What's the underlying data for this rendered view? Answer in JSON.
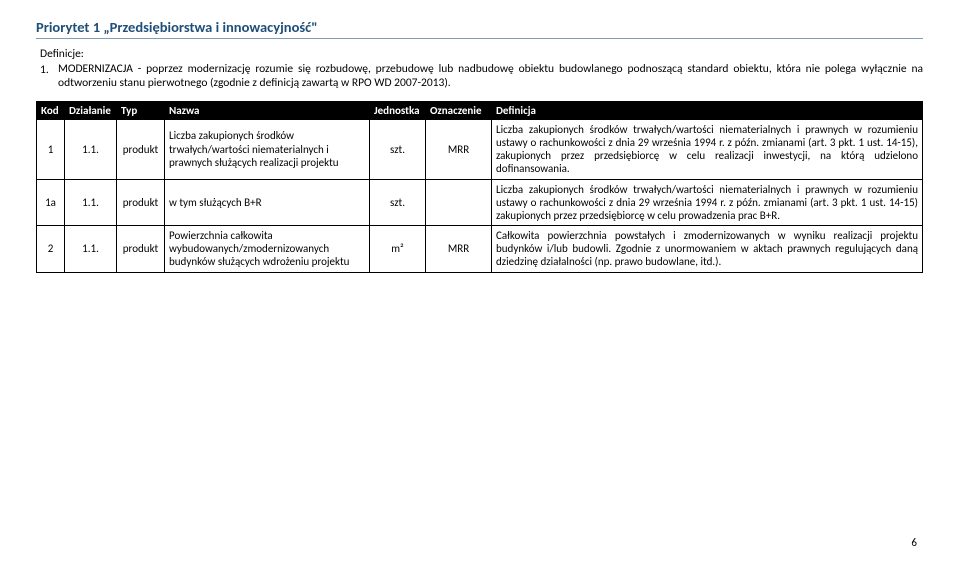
{
  "title": "Priorytet 1 „Przedsiębiorstwa i innowacyjność\"",
  "defs_label": "Definicje:",
  "def_num": "1.",
  "def_text": "MODERNIZACJA - poprzez modernizację rozumie się rozbudowę, przebudowę lub nadbudowę obiektu budowlanego podnoszącą standard obiektu, która nie polega wyłącznie na odtworzeniu stanu pierwotnego (zgodnie z definicją zawartą w RPO WD 2007-2013).",
  "headers": {
    "kod": "Kod",
    "dzialanie": "Działanie",
    "typ": "Typ",
    "nazwa": "Nazwa",
    "jednostka": "Jednostka",
    "oznaczenie": "Oznaczenie",
    "definicja": "Definicja"
  },
  "rows": [
    {
      "kod": "1",
      "dzialanie": "1.1.",
      "typ": "produkt",
      "nazwa": "Liczba zakupionych środków trwałych/wartości niematerialnych i prawnych służących realizacji projektu",
      "jednostka": "szt.",
      "oznaczenie": "MRR",
      "definicja": "Liczba zakupionych środków trwałych/wartości niematerialnych i prawnych w rozumieniu ustawy o rachunkowości z dnia 29 września 1994 r. z późn. zmianami (art. 3 pkt. 1 ust. 14-15), zakupionych przez przedsiębiorcę w celu realizacji inwestycji, na którą udzielono dofinansowania."
    },
    {
      "kod": "1a",
      "dzialanie": "1.1.",
      "typ": "produkt",
      "nazwa": "w tym służących B+R",
      "jednostka": "szt.",
      "oznaczenie": "",
      "definicja": "Liczba zakupionych środków trwałych/wartości niematerialnych i prawnych w rozumieniu ustawy o rachunkowości z dnia 29 września 1994 r. z późn. zmianami (art. 3 pkt. 1 ust. 14-15) zakupionych przez przedsiębiorcę w celu prowadzenia prac B+R."
    },
    {
      "kod": "2",
      "dzialanie": "1.1.",
      "typ": "produkt",
      "nazwa": "Powierzchnia całkowita wybudowanych/zmodernizowanych budynków służących wdrożeniu projektu",
      "jednostka": "m²",
      "oznaczenie": "MRR",
      "definicja": "Całkowita powierzchnia powstałych i zmodernizowanych w wyniku realizacji projektu budynków i/lub budowli. Zgodnie z unormowaniem w aktach prawnych regulujących daną dziedzinę działalności (np. prawo budowlane, itd.)."
    }
  ],
  "page_number": "6",
  "colors": {
    "title": "#1f4e79",
    "title_border": "#7f9db9",
    "header_bg": "#000000",
    "header_fg": "#ffffff",
    "border": "#000000",
    "text": "#000000",
    "background": "#ffffff"
  }
}
